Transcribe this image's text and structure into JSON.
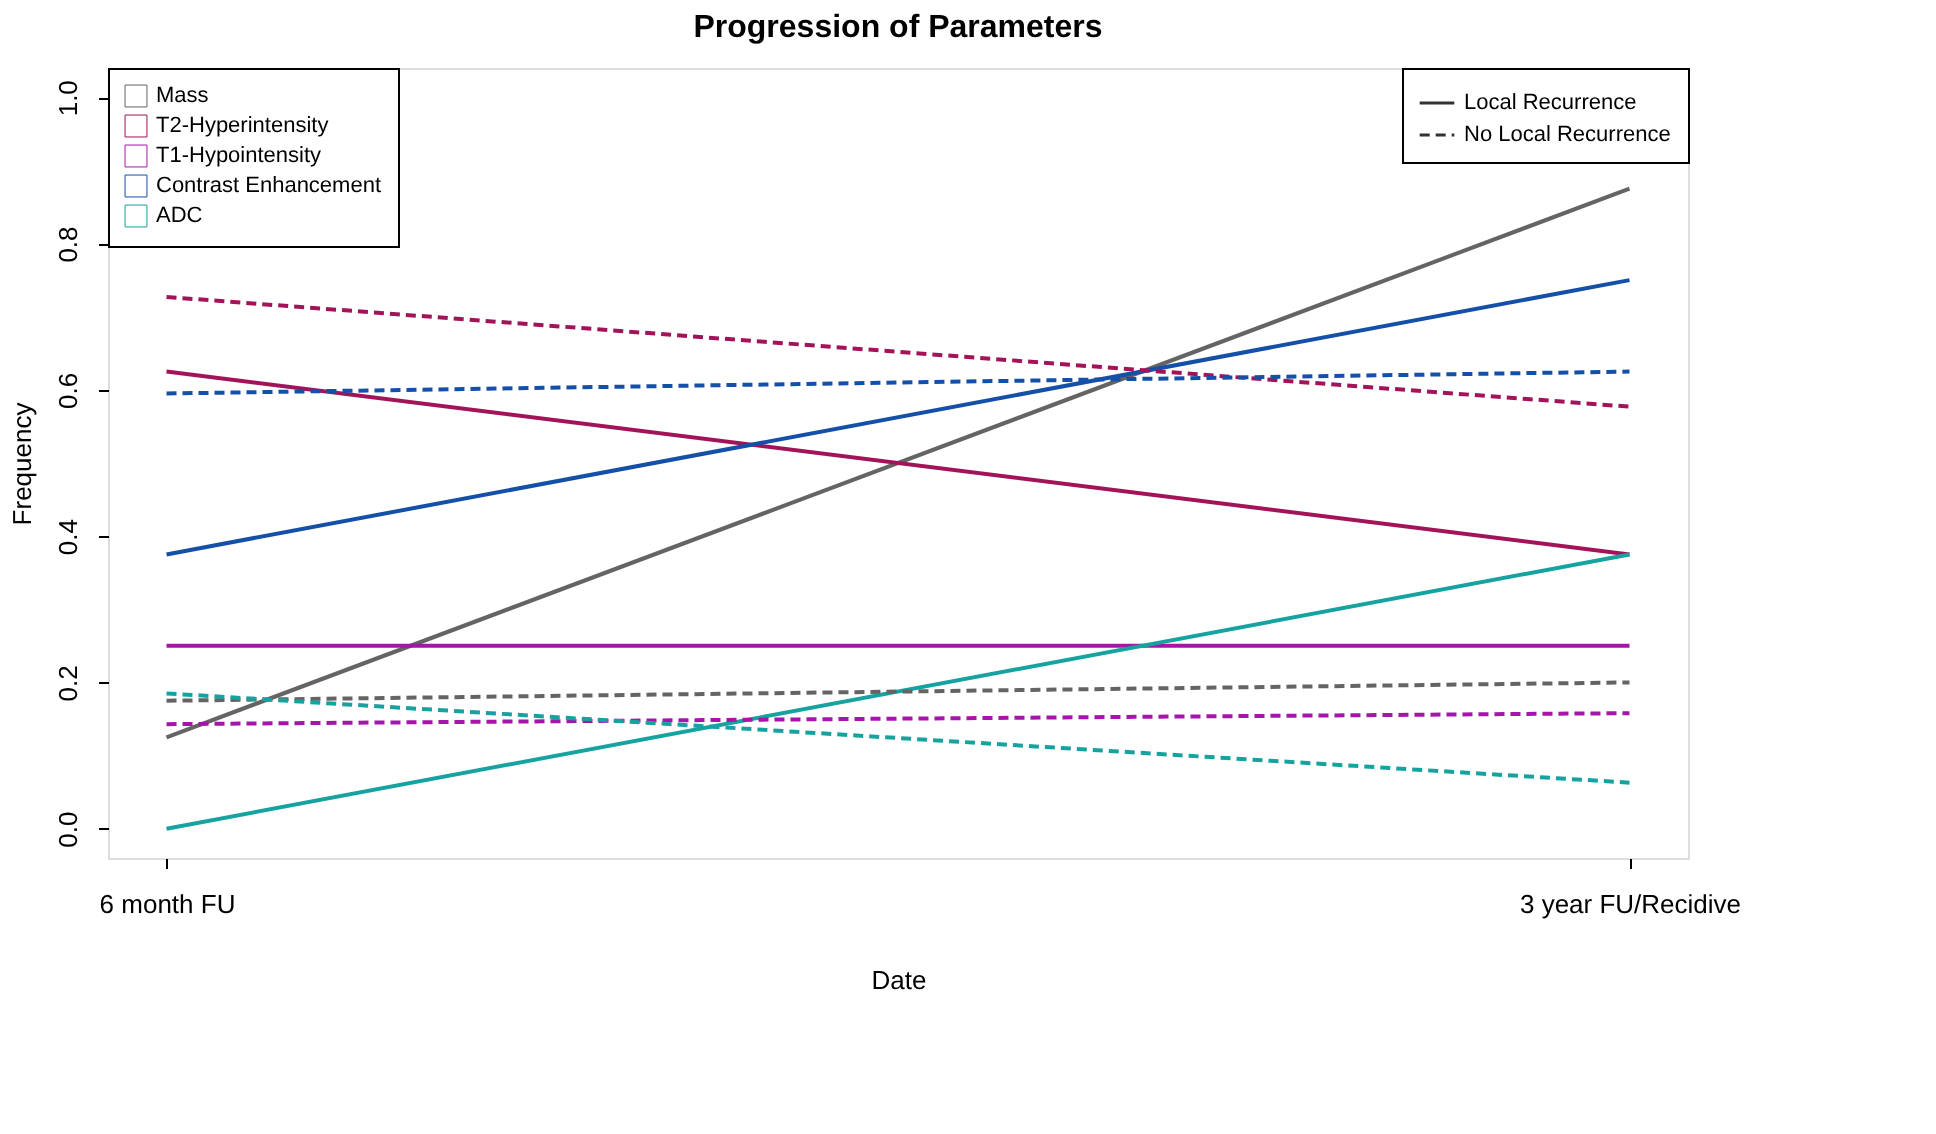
{
  "chart_data": {
    "type": "line",
    "title": "Progression of Parameters",
    "xlabel": "Date",
    "ylabel": "Frequency",
    "categories": [
      "6 month FU",
      "3 year FU/Recidive"
    ],
    "ylim": [
      -0.04,
      1.04
    ],
    "yticks": [
      {
        "value": 0,
        "label": "0.0"
      },
      0.2,
      0.4,
      0.6,
      0.8,
      {
        "value": 1,
        "label": "1.0"
      }
    ],
    "grid": false,
    "legend": "top left",
    "marker": "none",
    "annotations": [
      "Local Recurrence",
      "No Local Recurrence"
    ],
    "series": [
      {
        "name": "Mass",
        "color": "#646464",
        "line_style": "solid",
        "values": [
          0.125,
          0.875
        ]
      },
      {
        "name": "T2-Hyperintensity",
        "color": "#a3135a",
        "line_style": "solid",
        "values": [
          0.625,
          0.375
        ]
      },
      {
        "name": "T1-Hypointensity",
        "color": "#a614ab",
        "line_style": "solid",
        "values": [
          0.25,
          0.25
        ]
      },
      {
        "name": "Contrast Enhancement",
        "color": "#1450a8",
        "line_style": "solid",
        "values": [
          0.375,
          0.75
        ]
      },
      {
        "name": "ADC",
        "color": "#16a3a0",
        "line_style": "solid",
        "values": [
          0.0,
          0.375
        ]
      },
      {
        "color": "#646464",
        "line_style": "dashed",
        "values": [
          0.175,
          0.2
        ]
      },
      {
        "color": "#a3135a",
        "line_style": "dashed",
        "values": [
          0.727,
          0.577
        ]
      },
      {
        "color": "#a614ab",
        "line_style": "dashed",
        "values": [
          0.143,
          0.158
        ]
      },
      {
        "color": "#1450a8",
        "line_style": "dashed",
        "values": [
          0.595,
          0.625
        ]
      },
      {
        "color": "#16a3a0",
        "line_style": "dashed",
        "values": [
          0.185,
          0.063
        ]
      }
    ]
  }
}
